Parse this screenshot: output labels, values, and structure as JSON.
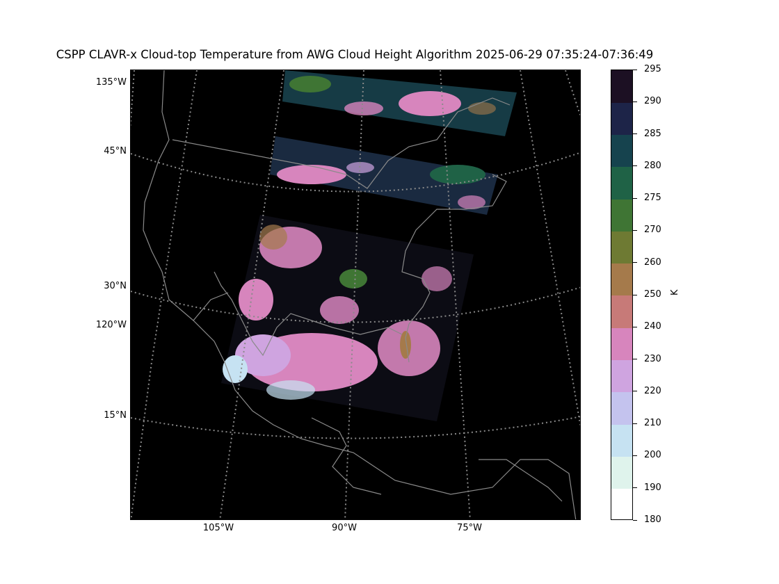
{
  "title": "CSPP CLAVR-x Cloud-top Temperature from AWG Cloud Height Algorithm 2025-06-29 07:35:24-07:36:49",
  "map": {
    "background": "#000000",
    "coastline_color": "#8a8a8a",
    "gridline_color": "#8a8a8a",
    "gridline_style": "dotted",
    "lat_labels": [
      "45°N",
      "30°N",
      "15°N"
    ],
    "lon_labels_left": [
      "135°W",
      "120°W"
    ],
    "lon_labels_bottom": [
      "105°W",
      "90°W",
      "75°W"
    ]
  },
  "colorbar": {
    "unit_label": "K",
    "ticks": [
      "180",
      "190",
      "200",
      "210",
      "220",
      "230",
      "240",
      "250",
      "260",
      "270",
      "275",
      "280",
      "285",
      "290",
      "295"
    ],
    "colors": [
      "#ffffff",
      "#dff3ec",
      "#c6e2f2",
      "#c4c3ee",
      "#cfa4e0",
      "#d785bd",
      "#c77a78",
      "#a57a4b",
      "#6e7a33",
      "#3f7534",
      "#1f6246",
      "#16434e",
      "#1d2448",
      "#1c1023"
    ]
  }
}
